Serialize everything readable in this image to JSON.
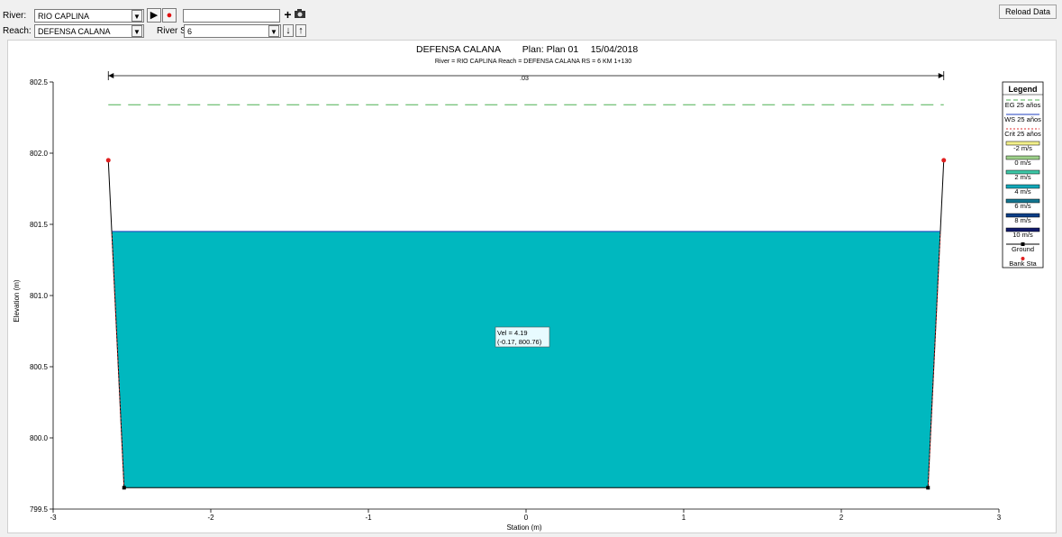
{
  "toolbar": {
    "river_label": "River:",
    "river_value": "RIO CAPLINA",
    "reach_label": "Reach:",
    "reach_value": "DEFENSA CALANA",
    "river_sta_label": "River Sta.:",
    "river_sta_value": "6",
    "profile_value": "",
    "reload_label": "Reload Data"
  },
  "plot": {
    "title_line1_name": "DEFENSA CALANA",
    "title_line1_plan": "Plan: Plan 01",
    "title_line1_date": "15/04/2018",
    "title_line2": "River = RIO CAPLINA   Reach = DEFENSA CALANA     RS = 6    KM 1+130",
    "ylabel": "Elevation (m)",
    "xlabel": "Station (m)",
    "manning_label": ".03",
    "tooltip_line1": "Vel = 4.19",
    "tooltip_line2": "(-0.17, 800.76)"
  },
  "chart_data": {
    "type": "line",
    "xlabel": "Station (m)",
    "ylabel": "Elevation (m)",
    "xlim": [
      -3,
      3
    ],
    "ylim": [
      799.5,
      802.5
    ],
    "x_ticks": [
      -3,
      -2,
      -1,
      0,
      1,
      2,
      3
    ],
    "y_ticks": [
      799.5,
      800.0,
      800.5,
      801.0,
      801.5,
      802.0,
      802.5
    ],
    "ground": [
      [
        -2.65,
        801.95
      ],
      [
        -2.55,
        799.65
      ],
      [
        2.55,
        799.65
      ],
      [
        2.65,
        801.95
      ]
    ],
    "bank_stations": [
      [
        -2.65,
        801.95
      ],
      [
        2.65,
        801.95
      ]
    ],
    "ws_elevation": 801.45,
    "eg_elevation": 802.34,
    "fill_color": "#00b8bf",
    "legend": {
      "title": "Legend",
      "items": [
        {
          "label": "EG 25 años",
          "kind": "dash",
          "color": "#4caf50"
        },
        {
          "label": "WS 25 años",
          "kind": "line",
          "color": "#1f3fbf"
        },
        {
          "label": "Crit 25 años",
          "kind": "dot",
          "color": "#e03030"
        },
        {
          "label": "-2 m/s",
          "kind": "box",
          "color": "#f3f08a"
        },
        {
          "label": "0 m/s",
          "kind": "box",
          "color": "#9ed18b"
        },
        {
          "label": "2 m/s",
          "kind": "box",
          "color": "#3cc6a6"
        },
        {
          "label": "4 m/s",
          "kind": "box",
          "color": "#12a7b8"
        },
        {
          "label": "6 m/s",
          "kind": "box",
          "color": "#13758f"
        },
        {
          "label": "8 m/s",
          "kind": "box",
          "color": "#0c3e86"
        },
        {
          "label": "10 m/s",
          "kind": "box",
          "color": "#111a6a"
        },
        {
          "label": "Ground",
          "kind": "ground",
          "color": "#000000"
        },
        {
          "label": "Bank Sta",
          "kind": "bank",
          "color": "#e02020"
        }
      ]
    }
  }
}
